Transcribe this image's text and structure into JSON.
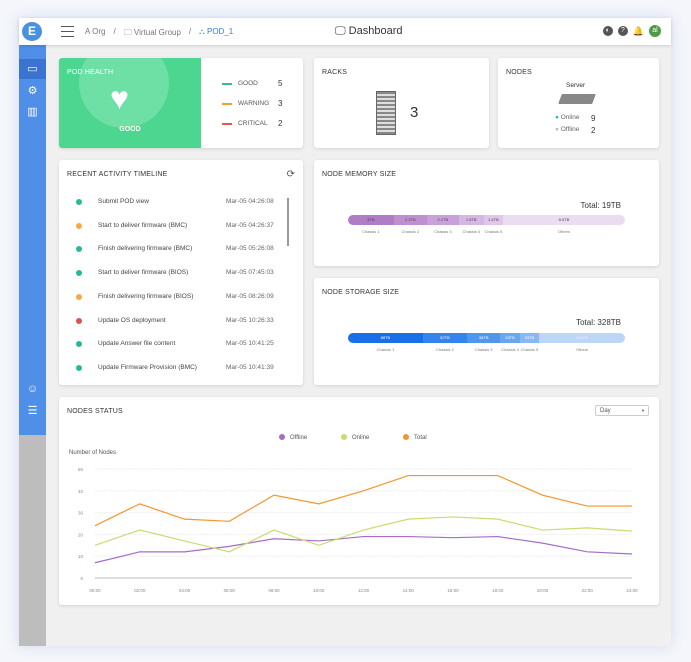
{
  "header": {
    "logo": "E",
    "breadcrumbs": [
      "A Org",
      "Virtual Group",
      "POD_1"
    ],
    "title": "Dashboard",
    "avatar": "al"
  },
  "pod_health": {
    "title": "POD HEALTH",
    "status": "GOOD",
    "legend": [
      {
        "label": "GOOD",
        "count": "5",
        "color": "#2ec27e"
      },
      {
        "label": "WARNING",
        "count": "3",
        "color": "#f0a030"
      },
      {
        "label": "CRITICAL",
        "count": "2",
        "color": "#e05a4a"
      }
    ]
  },
  "racks": {
    "title": "RACKS",
    "count": "3"
  },
  "nodes": {
    "title": "NODES",
    "type": "Server",
    "online_label": "Online",
    "online": "9",
    "offline_label": "Offline",
    "offline": "2"
  },
  "timeline": {
    "title": "RECENT ACTIVITY TIMELINE",
    "items": [
      {
        "label": "Submit POD view",
        "time": "Mar-05 04:26:08",
        "color": "#26b99a"
      },
      {
        "label": "Start to deliver firmware (BMC)",
        "time": "Mar-05 04:26:37",
        "color": "#f4a94c"
      },
      {
        "label": "Finish delivering firmware (BMC)",
        "time": "Mar-05 05:26:08",
        "color": "#26b99a"
      },
      {
        "label": "Start to deliver firmware (BIOS)",
        "time": "Mar-05 07:45:03",
        "color": "#26b99a"
      },
      {
        "label": "Finish delivering firmware (BIOS)",
        "time": "Mar-05 08:26:09",
        "color": "#f4a94c"
      },
      {
        "label": "Update OS deployment",
        "time": "Mar-05 10:26:33",
        "color": "#d9534f"
      },
      {
        "label": "Update Answer file content",
        "time": "Mar-05 10:41:25",
        "color": "#26b99a"
      },
      {
        "label": "Update Firmware Provision (BMC)",
        "time": "Mar-05 10:41:39",
        "color": "#26b99a"
      }
    ]
  },
  "memory": {
    "title": "NODE MEMORY SIZE",
    "total": "Total: 19TB",
    "segments": [
      {
        "value": "3TB",
        "label": "Chassis 1",
        "share": 16.5,
        "color": "#b07cc6"
      },
      {
        "value": "2.2TB",
        "label": "Chassis 2",
        "share": 12,
        "color": "#bf8fd2"
      },
      {
        "value": "2.1TB",
        "label": "Chassis 3",
        "share": 11.5,
        "color": "#c9a0da"
      },
      {
        "value": "1.6TB",
        "label": "Chassis 4",
        "share": 9,
        "color": "#d6b6e3"
      },
      {
        "value": "1.4TB",
        "label": "Chassis 5",
        "share": 7,
        "color": "#dfc6ea"
      },
      {
        "value": "8.5TB",
        "label": "Others",
        "share": 44,
        "color": "#ecdcf2"
      }
    ]
  },
  "storage": {
    "title": "NODE STORAGE SIZE",
    "total": "Total: 328TB",
    "segments": [
      {
        "value": "88TB",
        "label": "Chassis 1",
        "share": 27,
        "color": "#1a6fe8"
      },
      {
        "value": "52TB",
        "label": "Chassis 2",
        "share": 16,
        "color": "#3583ec"
      },
      {
        "value": "38TB",
        "label": "Chassis 3",
        "share": 12,
        "color": "#5096ef"
      },
      {
        "value": "23TB",
        "label": "Chassis 4",
        "share": 7,
        "color": "#6aa7f1"
      },
      {
        "value": "23TB",
        "label": "Chassis 5",
        "share": 7,
        "color": "#86b8f3"
      },
      {
        "value": "104TB",
        "label": "Others",
        "share": 31,
        "color": "#bcd6f8"
      }
    ]
  },
  "nodes_status": {
    "title": "NODES STATUS",
    "range_select": "Day"
  },
  "chart_data": {
    "type": "line",
    "ylabel": "Number of Nodes",
    "ylim": [
      0,
      50
    ],
    "yticks": [
      "0",
      "10",
      "20",
      "30",
      "40",
      "50"
    ],
    "x": [
      "00:00",
      "02:00",
      "04:00",
      "06:00",
      "08:00",
      "10:00",
      "12:00",
      "14:00",
      "16:00",
      "18:00",
      "20:00",
      "22:00",
      "24:00"
    ],
    "series": [
      {
        "name": "Offline",
        "color": "#a56cc8",
        "values": [
          7,
          12,
          12,
          14.5,
          18,
          17,
          19,
          19,
          18.5,
          19,
          16,
          12,
          11
        ]
      },
      {
        "name": "Online",
        "color": "#c8dc70",
        "values": [
          15,
          22,
          17,
          12,
          22,
          15,
          22,
          27,
          28,
          27,
          22,
          23,
          21.5
        ]
      },
      {
        "name": "Total",
        "color": "#f5952e",
        "values": [
          24,
          34,
          27,
          26,
          38,
          34,
          40,
          47,
          47,
          47,
          38,
          33,
          33
        ]
      }
    ],
    "grid": true,
    "legend": "top-center"
  }
}
